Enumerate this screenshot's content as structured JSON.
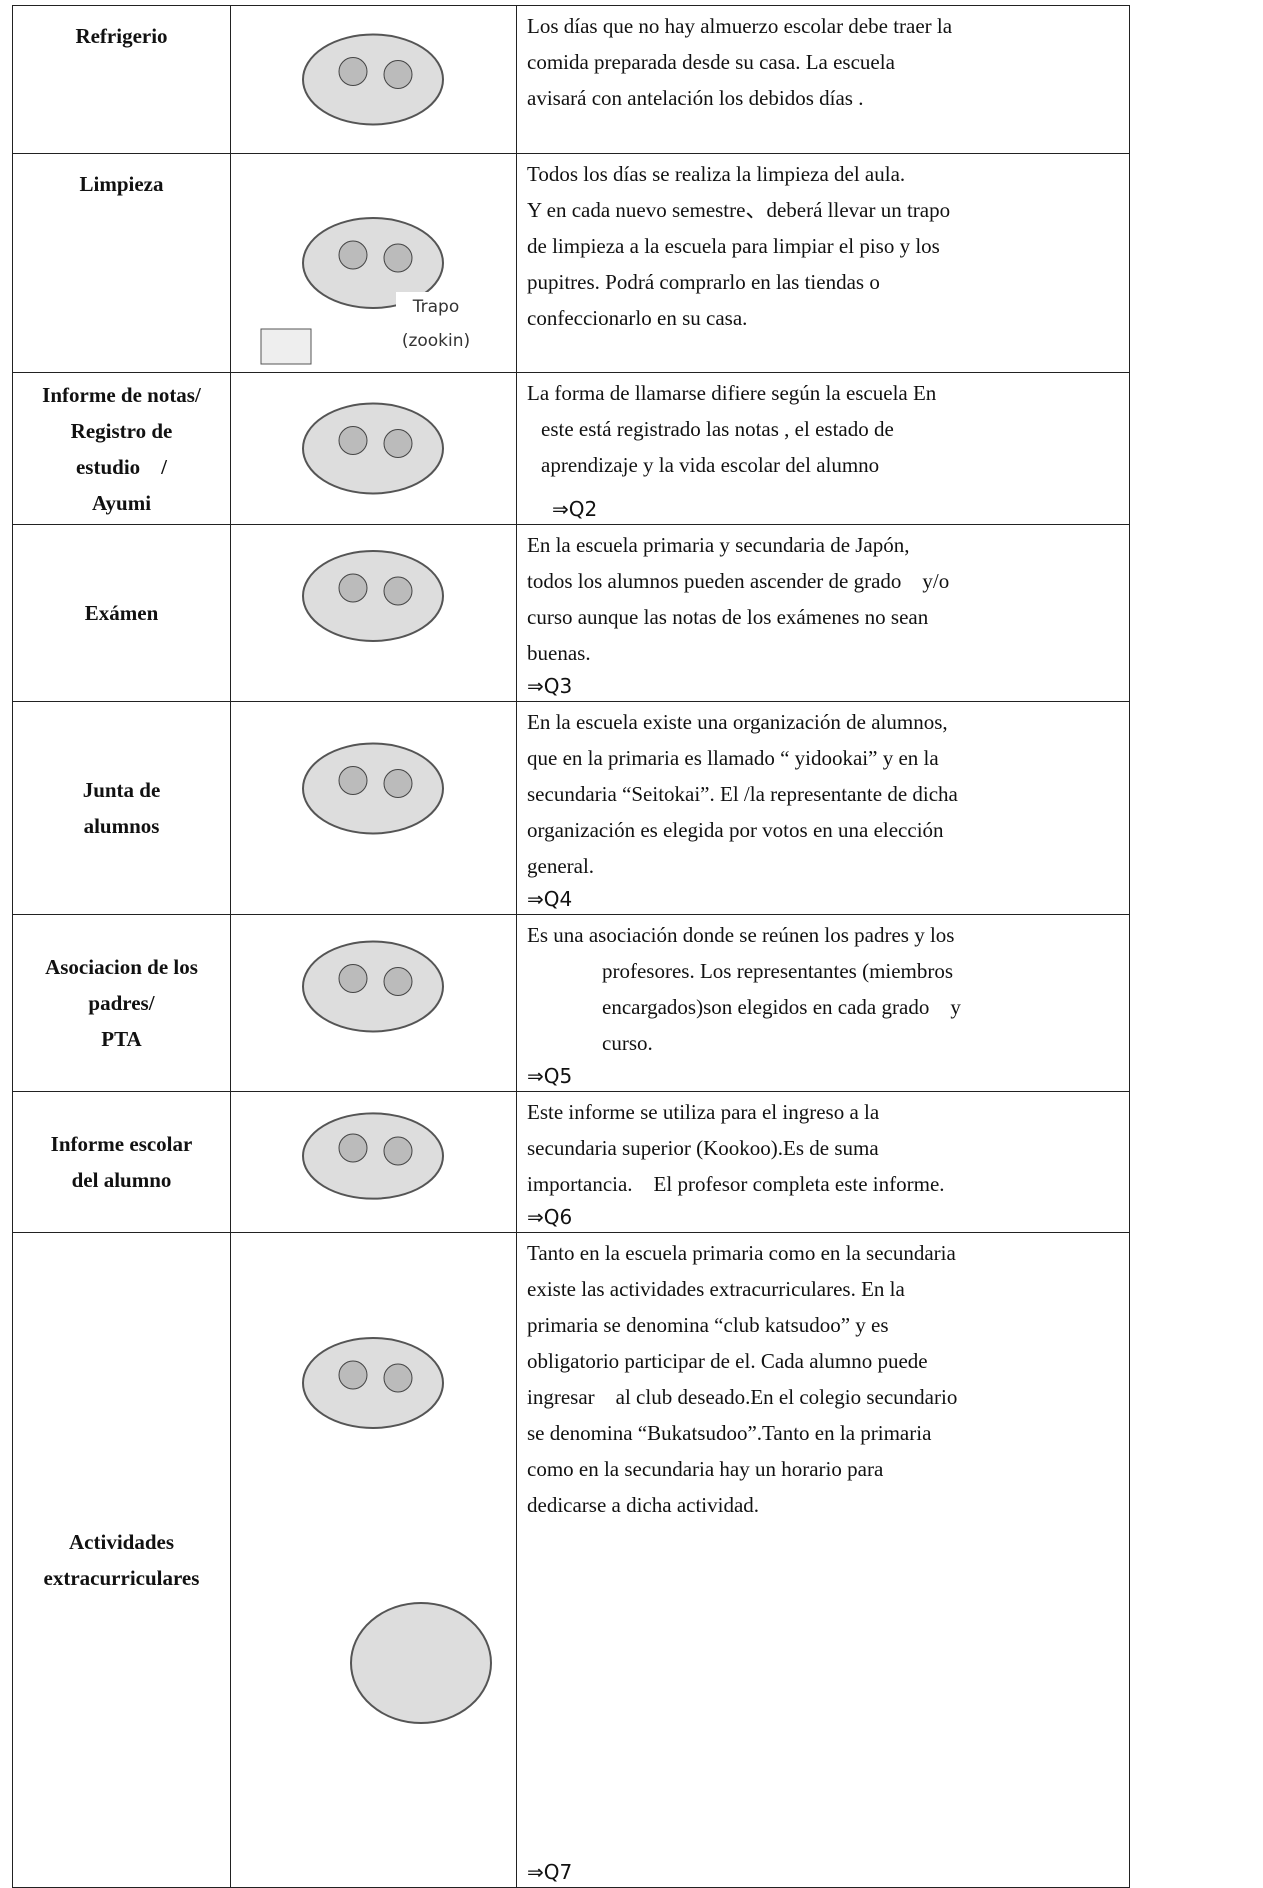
{
  "table": {
    "rows": [
      {
        "label": [
          "Refrigerio"
        ],
        "description": [
          "Los días que no hay almuerzo escolar debe traer la",
          "comida preparada desde su casa. La escuela",
          "avisará con antelación los debidos días ."
        ]
      },
      {
        "label": [
          "Limpieza"
        ],
        "image_caption": [
          "Trapo",
          "(zookin)"
        ],
        "description": [
          "Todos los días se realiza la limpieza del aula.",
          "Y en cada nuevo semestre、deberá llevar un trapo",
          "de limpieza a la escuela para limpiar el piso y los",
          "pupitres. Podrá comprarlo en las tiendas o",
          "confeccionarlo en su casa."
        ]
      },
      {
        "label": [
          "Informe de notas/",
          "Registro de",
          "estudio　/",
          "Ayumi"
        ],
        "description": [
          "La forma de llamarse difiere según la escuela En",
          "este está registrado las notas , el estado de",
          "aprendizaje y la vida escolar del alumno"
        ],
        "ref": "⇒Q2"
      },
      {
        "label": [
          "Exámen"
        ],
        "description": [
          "En la escuela primaria y secundaria de Japón,",
          "todos los alumnos pueden ascender de grado　y/o",
          "curso aunque las notas de los exámenes no sean",
          "buenas."
        ],
        "ref": "⇒Q3"
      },
      {
        "label": [
          "Junta de",
          "alumnos"
        ],
        "description": [
          "En la escuela existe una organización de alumnos,",
          "que en la primaria es llamado “ yidookai” y en la",
          "secundaria “Seitokai”. El /la representante de dicha",
          "organización es elegida por votos en una elección",
          "general."
        ],
        "ref": "⇒Q4"
      },
      {
        "label": [
          "Asociacion de los",
          "padres/",
          "PTA"
        ],
        "description": [
          "Es una asociación donde se reúnen los padres y los",
          "profesores. Los representantes (miembros",
          "encargados)son elegidos en cada grado　y",
          "curso."
        ],
        "ref": "⇒Q5"
      },
      {
        "label": [
          "Informe escolar",
          "del alumno"
        ],
        "description": [
          "Este informe se utiliza para el ingreso a la",
          "secundaria superior (Kookoo).Es de suma",
          "importancia.　El profesor completa este informe."
        ],
        "ref": "⇒Q6"
      },
      {
        "label": [
          "Actividades",
          "extracurriculares"
        ],
        "description": [
          "Tanto en la escuela primaria como en la secundaria",
          "existe las actividades extracurriculares. En la",
          "primaria se denomina “club katsudoo” y es",
          "obligatorio participar de el. Cada alumno puede",
          "ingresar　al club deseado.En el colegio secundario",
          "se denomina “Bukatsudoo”.Tanto en la primaria",
          "como en la secundaria hay un horario para",
          "dedicarse a dicha actividad."
        ],
        "ref": "⇒Q7"
      }
    ]
  }
}
